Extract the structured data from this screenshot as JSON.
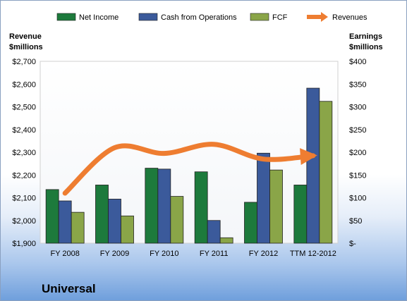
{
  "chart_data": {
    "type": "bar",
    "categories": [
      "FY 2008",
      "FY 2009",
      "FY 2010",
      "FY 2011",
      "FY 2012",
      "TTM 12-2012"
    ],
    "series": [
      {
        "name": "Net Income",
        "axis": "right",
        "color": "#1d7a3c",
        "values": [
          118,
          128,
          165,
          157,
          90,
          128
        ]
      },
      {
        "name": "Cash from Operations",
        "axis": "right",
        "color": "#3b5a9b",
        "values": [
          93,
          97,
          163,
          50,
          198,
          341
        ]
      },
      {
        "name": "FCF",
        "axis": "right",
        "color": "#8aa548",
        "values": [
          68,
          60,
          103,
          12,
          161,
          312
        ]
      },
      {
        "name": "Revenues",
        "axis": "left",
        "type": "line",
        "color": "#ee7d31",
        "values": [
          2120,
          2320,
          2295,
          2335,
          2270,
          2285
        ]
      }
    ],
    "left_axis": {
      "title_line1": "Revenue",
      "title_line2": "$millions",
      "min": 1900,
      "max": 2700,
      "step": 100,
      "tick_labels": [
        "$1,900",
        "$2,000",
        "$2,100",
        "$2,200",
        "$2,300",
        "$2,400",
        "$2,500",
        "$2,600",
        "$2,700"
      ]
    },
    "right_axis": {
      "title_line1": "Earnings",
      "title_line2": "$millions",
      "min": 0,
      "max": 400,
      "step": 50,
      "tick_labels": [
        "$-",
        "$50",
        "$100",
        "$150",
        "$200",
        "$250",
        "$300",
        "$350",
        "$400"
      ]
    },
    "company": "Universal",
    "legend_position": "top",
    "grid": false
  }
}
